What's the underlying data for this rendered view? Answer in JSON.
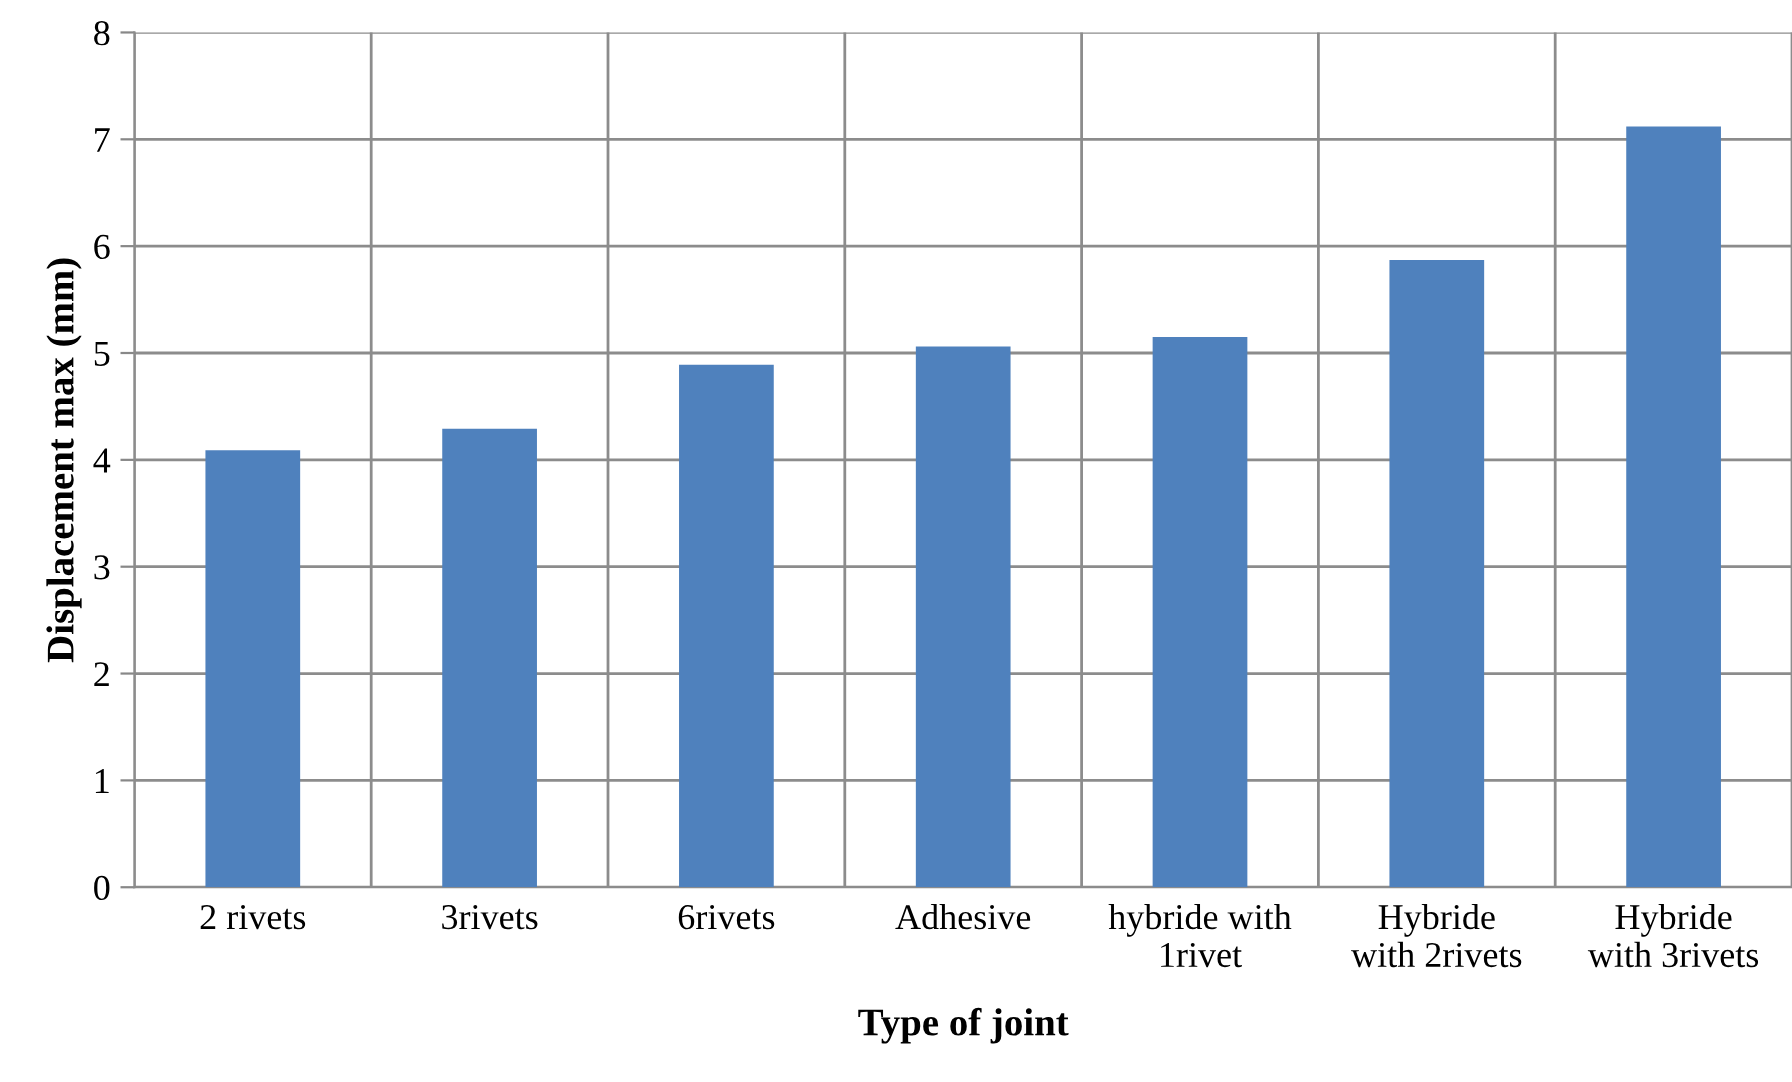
{
  "chart_data": {
    "type": "bar",
    "xlabel": "Type of joint",
    "ylabel": "Displacement max (mm)",
    "categories": [
      "2 rivets",
      "3rivets",
      "6rivets",
      "Adhesive",
      "hybride with\n1rivet",
      "Hybride\nwith 2rivets",
      "Hybride\nwith 3rivets"
    ],
    "values": [
      4.09,
      4.29,
      4.89,
      5.06,
      5.15,
      5.87,
      7.12
    ],
    "color": "#4f81bd",
    "ylim": [
      0,
      8
    ],
    "yticks": [
      0,
      1,
      2,
      3,
      4,
      5,
      6,
      7,
      8
    ],
    "grid": true,
    "legend": false
  }
}
